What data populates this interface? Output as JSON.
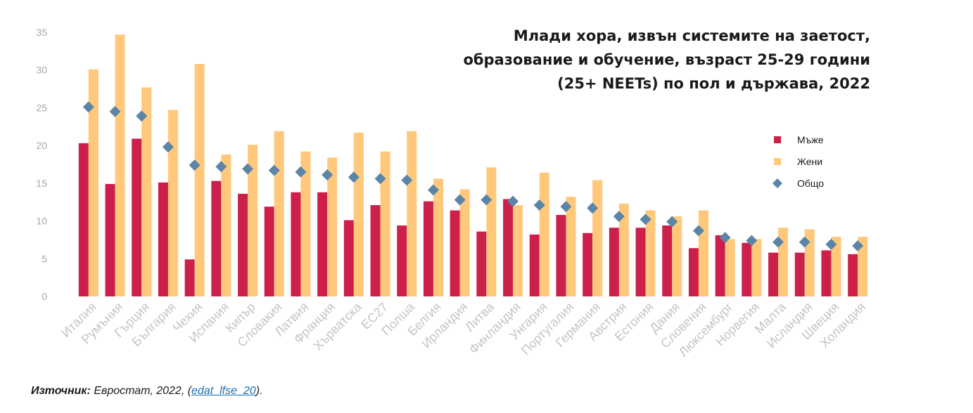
{
  "chart_data": {
    "type": "bar",
    "title": "Млади хора, извън системите на заетост, образование и обучение, възраст 25-29 години (25+ NEETs) по пол и държава, 2022",
    "title_lines": [
      "Млади хора, извън системите на заетост,",
      "образование и обучение, възраст 25-29 години",
      "(25+ NEETs) по пол и държава, 2022"
    ],
    "xlabel": "",
    "ylabel": "",
    "ylim": [
      0,
      35
    ],
    "yticks": [
      0,
      5,
      10,
      15,
      20,
      25,
      30,
      35
    ],
    "grid": false,
    "legend_position": "right",
    "categories": [
      "Италия",
      "Румъния",
      "Гърция",
      "България",
      "Чехия",
      "Испания",
      "Кипър",
      "Словакия",
      "Латвия",
      "Франция",
      "Хърватска",
      "ЕС27",
      "Полша",
      "Белгия",
      "Ирландия",
      "Литва",
      "Финландия",
      "Унгария",
      "Португалия",
      "Германия",
      "Австрия",
      "Естония",
      "Дания",
      "Словения",
      "Люксембург",
      "Норвегия",
      "Малта",
      "Исландия",
      "Швеция",
      "Холандия"
    ],
    "series": [
      {
        "name": "Мъже",
        "kind": "bar",
        "color": "#cc1f4a",
        "values": [
          20.3,
          14.9,
          20.9,
          15.1,
          4.9,
          15.3,
          13.6,
          11.9,
          13.8,
          13.8,
          10.1,
          12.1,
          9.4,
          12.6,
          11.4,
          8.6,
          12.9,
          8.2,
          10.8,
          8.4,
          9.1,
          9.1,
          9.4,
          6.4,
          8.1,
          7.1,
          5.8,
          5.8,
          6.1,
          5.6
        ]
      },
      {
        "name": "Жени",
        "kind": "bar",
        "color": "#ffc87a",
        "values": [
          30.1,
          34.7,
          27.7,
          24.7,
          30.8,
          18.8,
          20.1,
          21.9,
          19.2,
          18.4,
          21.7,
          19.2,
          21.9,
          15.6,
          14.2,
          17.1,
          12.1,
          16.4,
          13.2,
          15.4,
          12.3,
          11.4,
          10.6,
          11.4,
          7.6,
          7.6,
          9.1,
          8.9,
          7.9,
          7.9
        ]
      },
      {
        "name": "Общо",
        "kind": "marker",
        "color": "#5b84a7",
        "values": [
          25.1,
          24.5,
          23.9,
          19.8,
          17.4,
          17.2,
          16.9,
          16.7,
          16.5,
          16.1,
          15.8,
          15.6,
          15.4,
          14.1,
          12.8,
          12.8,
          12.6,
          12.1,
          11.9,
          11.7,
          10.6,
          10.2,
          9.9,
          8.7,
          7.8,
          7.4,
          7.2,
          7.2,
          6.9,
          6.7
        ]
      }
    ]
  },
  "source": {
    "label": "Източник:",
    "text": " Евростат, 2022, (",
    "link": "edat_lfse_20",
    "end": ")."
  }
}
